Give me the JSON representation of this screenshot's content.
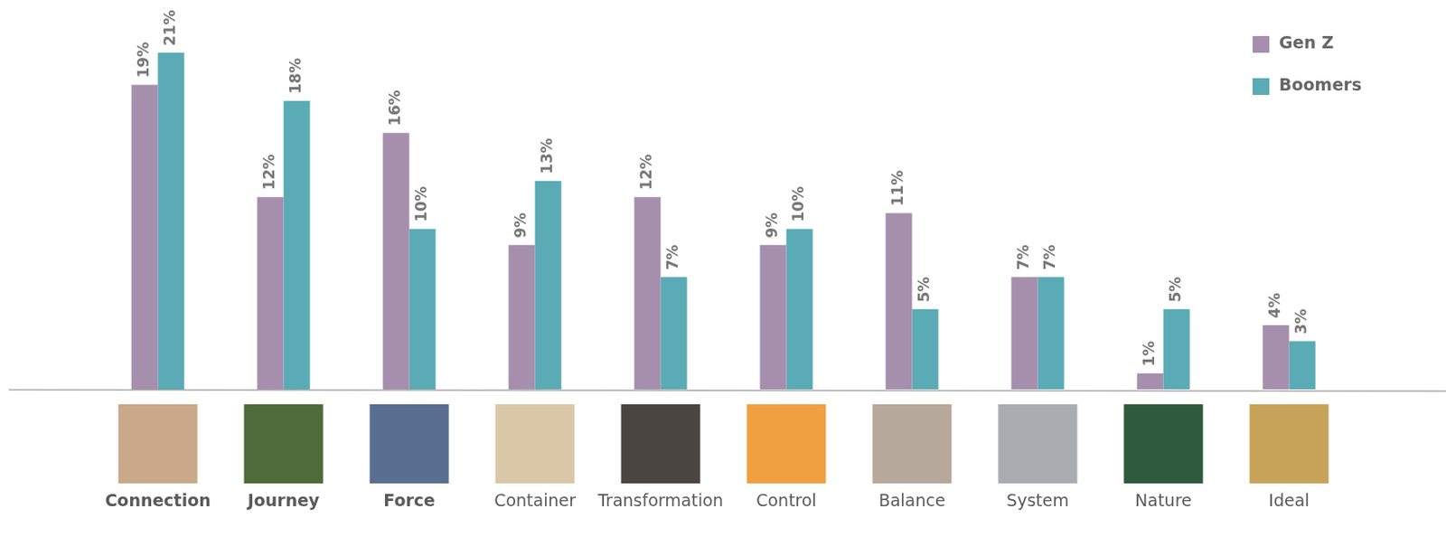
{
  "chart_data": {
    "type": "bar",
    "categories": [
      "Connection",
      "Journey",
      "Force",
      "Container",
      "Transformation",
      "Control",
      "Balance",
      "System",
      "Nature",
      "Ideal"
    ],
    "series": [
      {
        "name": "Gen Z",
        "color": "#a58fad",
        "values": [
          19,
          12,
          16,
          9,
          12,
          9,
          11,
          7,
          1,
          4
        ],
        "value_labels": [
          "19%",
          "12%",
          "16%",
          "9%",
          "12%",
          "9%",
          "11%",
          "7%",
          "1%",
          "4%"
        ]
      },
      {
        "name": "Boomers",
        "color": "#5aabb5",
        "values": [
          21,
          18,
          10,
          13,
          7,
          10,
          5,
          7,
          5,
          3
        ],
        "value_labels": [
          "21%",
          "18%",
          "10%",
          "13%",
          "7%",
          "10%",
          "5%",
          "7%",
          "5%",
          "3%"
        ]
      }
    ],
    "ylim": [
      0,
      21
    ],
    "grid": false,
    "legend": "top-right",
    "data_labels": true,
    "tick_labels": "x"
  }
}
